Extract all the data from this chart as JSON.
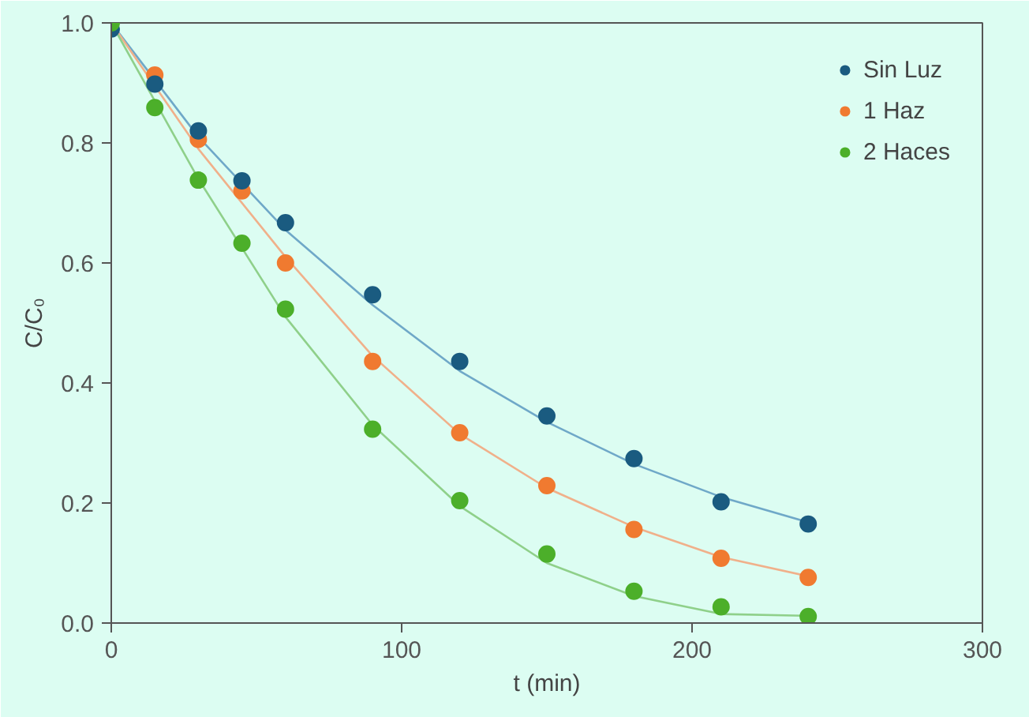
{
  "chart_data": {
    "type": "scatter",
    "xlabel": "t (min)",
    "ylabel": "C/C₀",
    "xlim": [
      0,
      300
    ],
    "ylim": [
      0,
      1.0
    ],
    "xticks": [
      0,
      100,
      200,
      300
    ],
    "yticks": [
      {
        "value": 0,
        "label": "0.0"
      },
      {
        "value": 0.2,
        "label": "0.2"
      },
      {
        "value": 0.4,
        "label": "0.4"
      },
      {
        "value": 0.6,
        "label": "0.6"
      },
      {
        "value": 0.8,
        "label": "0.8"
      },
      {
        "value": 1.0,
        "label": "1.0"
      }
    ],
    "grid": false,
    "legend": "top right",
    "marker": "circle",
    "x": [
      0,
      15,
      30,
      45,
      60,
      90,
      120,
      150,
      180,
      210,
      240
    ],
    "series": [
      {
        "name": "Sin Luz",
        "color": "#1a5b80",
        "values": [
          0.99,
          0.898,
          0.82,
          0.737,
          0.667,
          0.547,
          0.436,
          0.345,
          0.274,
          0.202,
          0.165
        ]
      },
      {
        "name": "1 Haz",
        "color": "#f07a30",
        "values": [
          null,
          0.913,
          0.806,
          0.72,
          0.6,
          0.436,
          0.317,
          0.229,
          0.156,
          0.108,
          0.076
        ]
      },
      {
        "name": "2 Haces",
        "color": "#4caf2a",
        "values": [
          1.0,
          0.859,
          0.738,
          0.633,
          0.523,
          0.323,
          0.204,
          0.115,
          0.053,
          0.027,
          0.011
        ]
      },
      {
        "type": "line",
        "marker": "none",
        "color": "#6fa8c8",
        "x": [
          0,
          30,
          60,
          90,
          120,
          150,
          180,
          210,
          240
        ],
        "values": [
          1.0,
          0.81,
          0.655,
          0.53,
          0.42,
          0.335,
          0.265,
          0.21,
          0.168
        ]
      },
      {
        "type": "line",
        "marker": "none",
        "color": "#f0b08a",
        "x": [
          0,
          30,
          60,
          90,
          120,
          150,
          180,
          210,
          240
        ],
        "values": [
          1.0,
          0.79,
          0.61,
          0.445,
          0.315,
          0.225,
          0.16,
          0.11,
          0.078
        ]
      },
      {
        "type": "line",
        "marker": "none",
        "color": "#8fd08a",
        "x": [
          0,
          30,
          60,
          90,
          120,
          150,
          180,
          210,
          240
        ],
        "values": [
          1.0,
          0.74,
          0.51,
          0.33,
          0.195,
          0.1,
          0.045,
          0.015,
          0.012
        ]
      }
    ]
  }
}
